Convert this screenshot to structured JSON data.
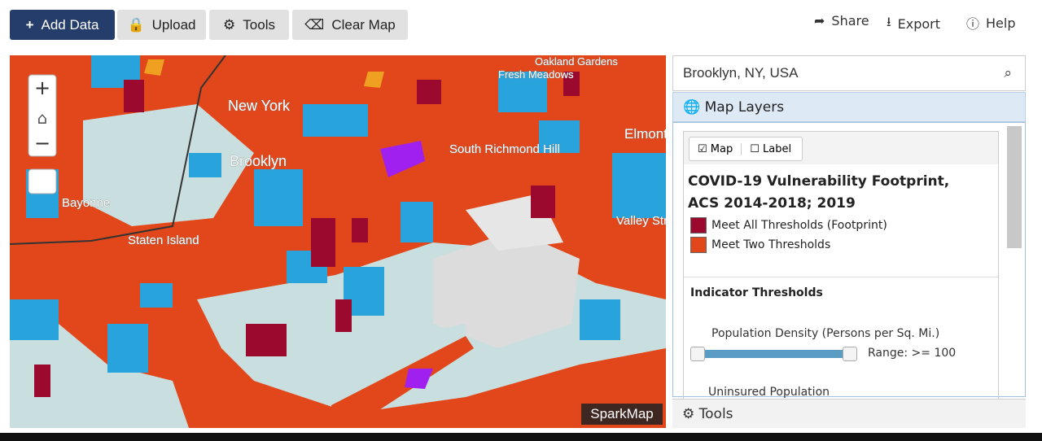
{
  "toolbar": {
    "buttons": [
      "Add Data",
      "Upload",
      "Tools",
      "Clear Map"
    ],
    "links": [
      "Share",
      "Export",
      "Help"
    ]
  },
  "map": {
    "labels": [
      "Oakland Gardens",
      "Fresh Meadows",
      "New York",
      "Brooklyn",
      "South Richmond Hill",
      "Elmont",
      "Valley Stream",
      "Bayonne",
      "Staten Island"
    ],
    "attribution": "SparkMap"
  },
  "panel": {
    "search": "Brooklyn, NY, USA",
    "header": "Map Layers",
    "tabs": [
      "Map",
      "Label"
    ],
    "layer_title": "COVID-19 Vulnerability Footprint, ACS 2014-2018; 2019",
    "legend": [
      "Meet All Thresholds (Footprint)",
      "Meet Two Thresholds"
    ],
    "section": "Indicator Thresholds",
    "indicators": [
      {
        "name": "Population Density (Persons per Sq. Mi.)",
        "range": "Range: >= 100"
      },
      {
        "name": "Uninsured Population"
      }
    ],
    "footer": "Tools"
  }
}
